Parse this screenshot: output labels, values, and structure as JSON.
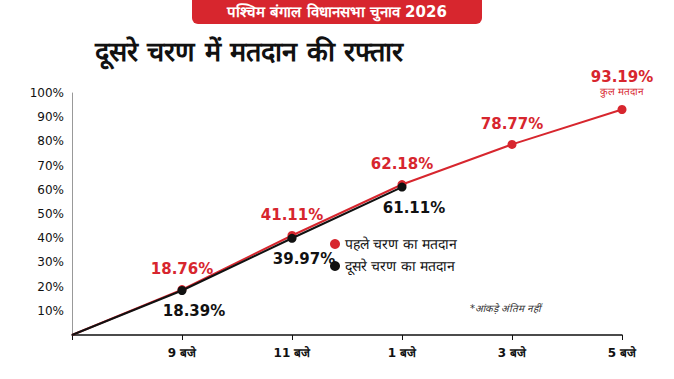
{
  "chart_data": {
    "type": "line",
    "title": "पश्चिम बंगाल विधानसभा चुनाव 2026",
    "subtitle": "दूसरे चरण में मतदान की रफ्तार",
    "categories": [
      null,
      "9 बजे",
      "11 बजे",
      "1 बजे",
      "3 बजे",
      "5 बजे"
    ],
    "series": [
      {
        "name": "पहले चरण का मतदान",
        "color": "#d7262e",
        "values": [
          0,
          18.76,
          41.11,
          62.18,
          78.77,
          93.19
        ],
        "value_labels": [
          null,
          "18.76%",
          "41.11%",
          "62.18%",
          "78.77%",
          "93.19%"
        ]
      },
      {
        "name": "दूसरे चरण का मतदान",
        "color": "#111111",
        "values": [
          0,
          18.39,
          39.97,
          61.11,
          null,
          null
        ],
        "value_labels": [
          null,
          "18.39%",
          "39.97%",
          "61.11%",
          null,
          null
        ]
      }
    ],
    "ylim": [
      0,
      100
    ],
    "yticks": [
      {
        "value": 10,
        "label": "10%"
      },
      {
        "value": 20,
        "label": "20%"
      },
      {
        "value": 30,
        "label": "30%"
      },
      {
        "value": 40,
        "label": "40%"
      },
      {
        "value": 50,
        "label": "50%"
      },
      {
        "value": 60,
        "label": "60%"
      },
      {
        "value": 70,
        "label": "70%"
      },
      {
        "value": 80,
        "label": "80%"
      },
      {
        "value": 90,
        "label": "90%"
      },
      {
        "value": 100,
        "label": "100%"
      }
    ],
    "grid": false,
    "legend": "right",
    "data_labels": true,
    "marker": "circle",
    "annotations": [
      {
        "text": "कुल मतदान",
        "series": "पहले चरण का मतदान",
        "category": "5 बजे"
      },
      {
        "text": "*आंकड़े अंतिम नहीं"
      }
    ]
  }
}
